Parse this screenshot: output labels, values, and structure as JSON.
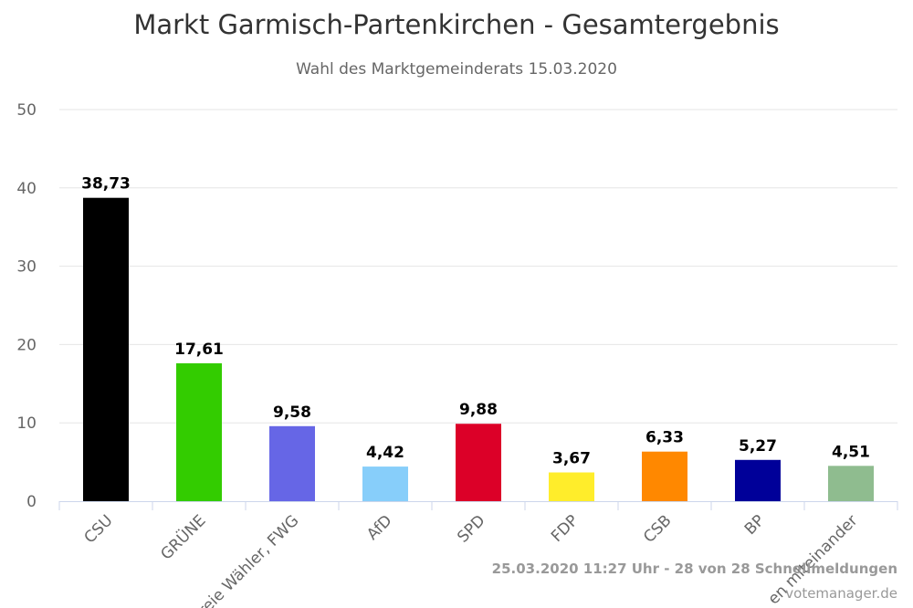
{
  "chart_data": {
    "type": "bar",
    "title": "Markt Garmisch-Partenkirchen - Gesamtergebnis",
    "subtitle": "Wahl des Marktgemeinderats 15.03.2020",
    "categories": [
      "CSU",
      "GRÜNE",
      "Freie Wähler, FWG",
      "AfD",
      "SPD",
      "FDP",
      "CSB",
      "BP",
      "en miteinander"
    ],
    "values": [
      38.73,
      17.61,
      9.58,
      4.42,
      9.88,
      3.67,
      6.33,
      5.27,
      4.51
    ],
    "data_labels": [
      "38,73",
      "17,61",
      "9,58",
      "4,42",
      "9,88",
      "3,67",
      "6,33",
      "5,27",
      "4,51"
    ],
    "colors": [
      "#000000",
      "#33cc00",
      "#6666e6",
      "#87cefa",
      "#dc0028",
      "#ffed2b",
      "#ff8800",
      "#000099",
      "#8fbc8f"
    ],
    "ylim": [
      0,
      50
    ],
    "yticks": [
      0,
      10,
      20,
      30,
      40,
      50
    ],
    "xlabel": "",
    "ylabel": "",
    "grid": true,
    "legend": "none"
  },
  "credits": {
    "status": "25.03.2020 11:27 Uhr - 28 von 28 Schnellmeldungen",
    "source": "votemanager.de"
  }
}
